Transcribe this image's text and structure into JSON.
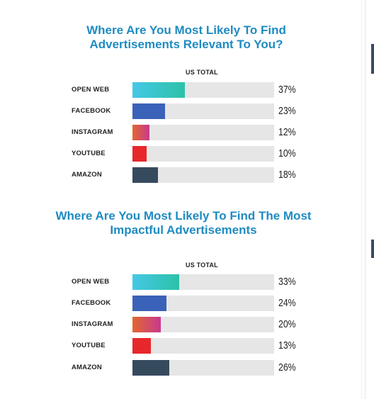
{
  "colors": {
    "title": "#1f8bc1",
    "track": "#e6e6e6",
    "open_web": [
      "#44c8e6",
      "#2cc2a8"
    ],
    "facebook": [
      "#3a62b8",
      "#3a62b8"
    ],
    "instagram": [
      "#e2672f",
      "#c83a8e"
    ],
    "youtube": [
      "#e8272b",
      "#e8272b"
    ],
    "amazon": [
      "#364a5e",
      "#364a5e"
    ]
  },
  "chart_data": [
    {
      "type": "bar",
      "orientation": "horizontal",
      "title_lines": [
        "Where Are You Most Likely To Find",
        "Advertisements Relevant To You?"
      ],
      "column_header": "US TOTAL",
      "categories": [
        "OPEN WEB",
        "FACEBOOK",
        "INSTAGRAM",
        "YOUTUBE",
        "AMAZON"
      ],
      "values": [
        37,
        23,
        12,
        10,
        18
      ],
      "value_labels": [
        "37%",
        "23%",
        "12%",
        "10%",
        "18%"
      ],
      "color_keys": [
        "open_web",
        "facebook",
        "instagram",
        "youtube",
        "amazon"
      ],
      "xlim": [
        0,
        100
      ]
    },
    {
      "type": "bar",
      "orientation": "horizontal",
      "title_lines": [
        "Where Are You Most Likely To Find The Most",
        "Impactful Advertisements"
      ],
      "column_header": "US TOTAL",
      "categories": [
        "OPEN WEB",
        "FACEBOOK",
        "INSTAGRAM",
        "YOUTUBE",
        "AMAZON"
      ],
      "values": [
        33,
        24,
        20,
        13,
        26
      ],
      "value_labels": [
        "33%",
        "24%",
        "20%",
        "13%",
        "26%"
      ],
      "color_keys": [
        "open_web",
        "facebook",
        "instagram",
        "youtube",
        "amazon"
      ],
      "xlim": [
        0,
        100
      ]
    }
  ]
}
